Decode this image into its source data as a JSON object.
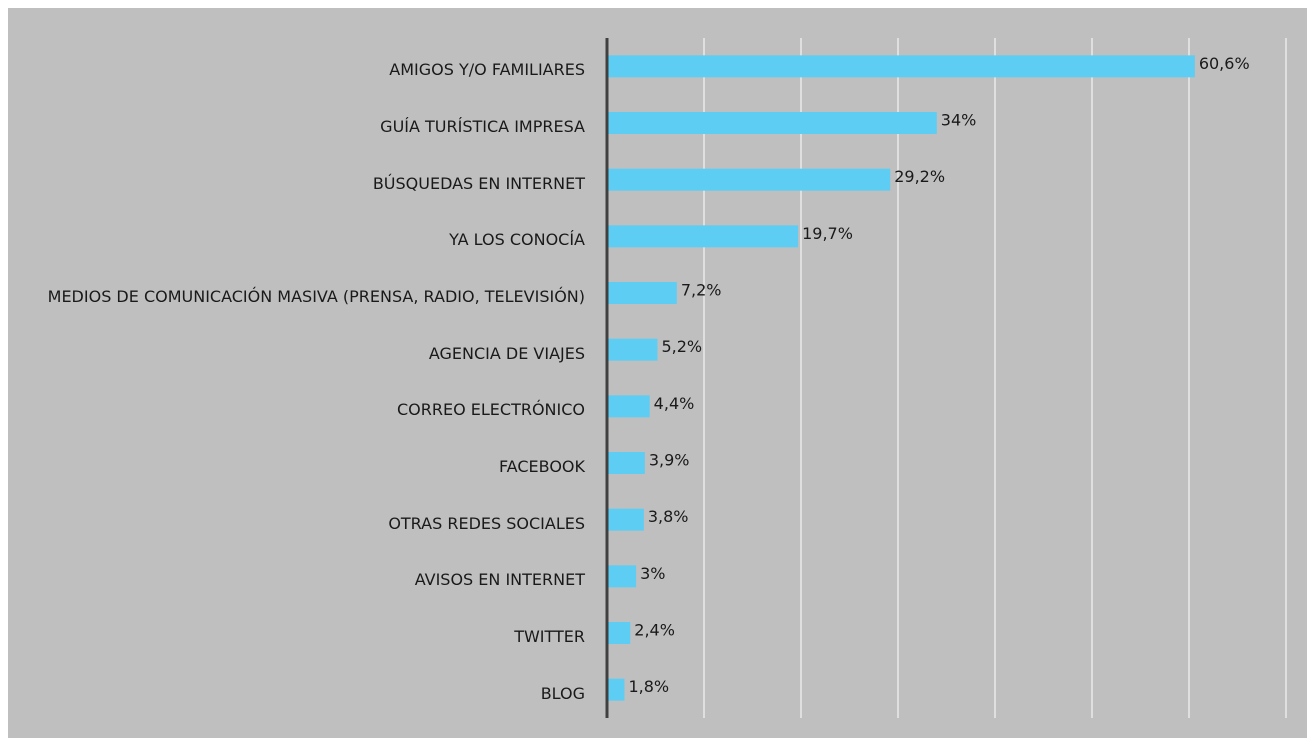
{
  "chart_data": {
    "type": "bar",
    "orientation": "horizontal",
    "categories": [
      "AMIGOS Y/O FAMILIARES",
      "GUÍA TURÍSTICA IMPRESA",
      "BÚSQUEDAS EN INTERNET",
      "YA LOS CONOCÍA",
      "MEDIOS DE COMUNICACIÓN MASIVA (PRENSA, RADIO, TELEVISIÓN)",
      "AGENCIA DE VIAJES",
      "CORREO ELECTRÓNICO",
      "FACEBOOK",
      "OTRAS REDES SOCIALES",
      "AVISOS EN INTERNET",
      "TWITTER",
      "BLOG"
    ],
    "values": [
      60.6,
      34,
      29.2,
      19.7,
      7.2,
      5.2,
      4.4,
      3.9,
      3.8,
      3,
      2.4,
      1.8
    ],
    "value_labels": [
      "60,6%",
      "34%",
      "29,2%",
      "19,7%",
      "7,2%",
      "5,2%",
      "4,4%",
      "3,9%",
      "3,8%",
      "3%",
      "2,4%",
      "1,8%"
    ],
    "color": "#5ecdf3",
    "xlim": [
      0,
      70
    ],
    "xticks": [
      0,
      10,
      20,
      30,
      40,
      50,
      60,
      70
    ],
    "grid": true
  }
}
